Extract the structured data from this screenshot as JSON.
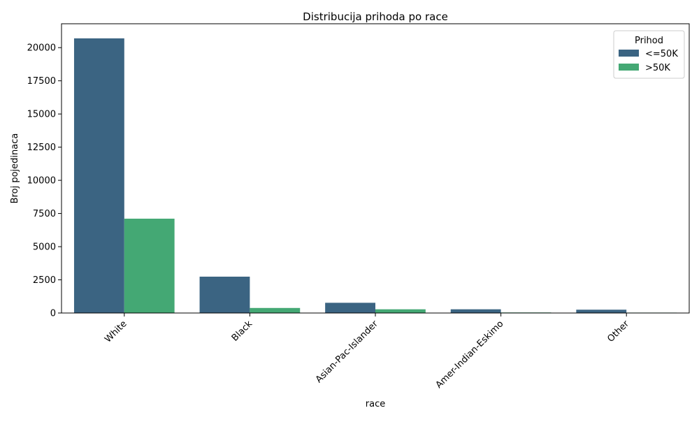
{
  "chart_data": {
    "type": "bar",
    "title": "Distribucija prihoda po race",
    "xlabel": "race",
    "ylabel": "Broj pojedinaca",
    "categories": [
      "White",
      "Black",
      "Asian-Pac-Islander",
      "Amer-Indian-Eskimo",
      "Other"
    ],
    "series": [
      {
        "name": "<=50K",
        "color": "#3b6482",
        "values": [
          20700,
          2740,
          770,
          280,
          250
        ]
      },
      {
        "name": ">50K",
        "color": "#44a874",
        "values": [
          7110,
          380,
          280,
          40,
          30
        ]
      }
    ],
    "ylim": [
      0,
      21800
    ],
    "yticks": [
      0,
      2500,
      5000,
      7500,
      10000,
      12500,
      15000,
      17500,
      20000
    ],
    "legend": {
      "title": "Prihod",
      "placement": "top-right"
    },
    "grid": false
  }
}
